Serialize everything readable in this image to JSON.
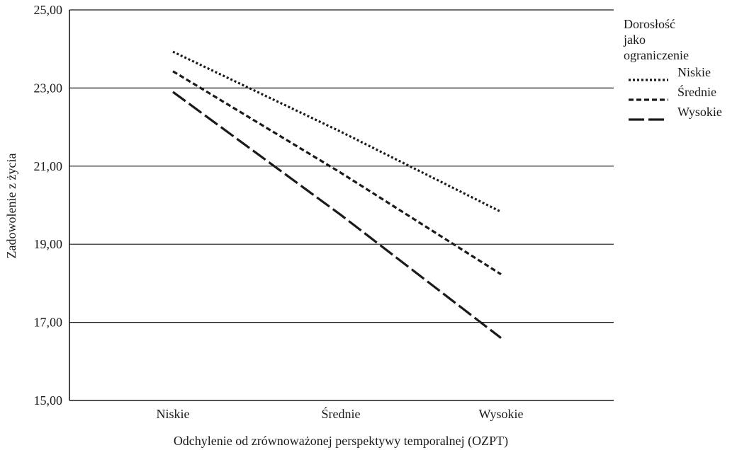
{
  "chart_data": {
    "type": "line",
    "categories": [
      "Niskie",
      "Średnie",
      "Wysokie"
    ],
    "series": [
      {
        "name": "Niskie",
        "values": [
          23.93,
          21.88,
          19.83
        ],
        "dash": "dotted"
      },
      {
        "name": "Średnie",
        "values": [
          23.43,
          20.83,
          18.23
        ],
        "dash": "short-dash"
      },
      {
        "name": "Wysokie",
        "values": [
          22.9,
          19.75,
          16.6
        ],
        "dash": "long-dash"
      }
    ],
    "title": "",
    "xlabel": "Odchylenie od zrównoważonej perspektywy temporalnej (OZPT)",
    "ylabel": "Zadowolenie z życia",
    "ylim": [
      15,
      25
    ],
    "yticks": [
      "15,00",
      "17,00",
      "19,00",
      "21,00",
      "23,00",
      "25,00"
    ],
    "ytick_values": [
      15,
      17,
      19,
      21,
      23,
      25
    ],
    "grid": "horizontal",
    "legend": {
      "title_lines": [
        "Dorosłość",
        "jako",
        "ograniczenie"
      ],
      "placement": "right"
    },
    "colors": {
      "line": "#1a1a1a",
      "grid": "#1a1a1a"
    }
  }
}
